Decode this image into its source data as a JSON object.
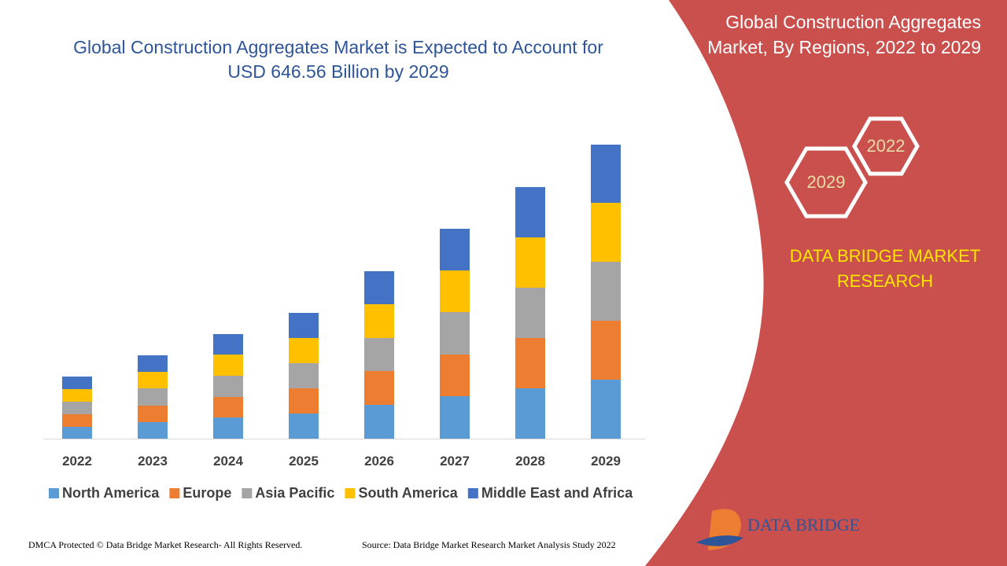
{
  "title": "Global Construction Aggregates Market is Expected to Account for USD 646.56 Billion by 2029",
  "side_panel": {
    "title": "Global Construction Aggregates Market, By Regions, 2022 to 2029",
    "hex_labels": [
      "2022",
      "2029"
    ],
    "brand": "DATA BRIDGE MARKET RESEARCH"
  },
  "logo": "DATA BRIDGE",
  "footer": {
    "left": "DMCA Protected © Data Bridge Market Research- All Rights Reserved.",
    "right": "Source: Data Bridge Market Research Market Analysis Study 2022"
  },
  "chart_data": {
    "type": "bar",
    "stacked": true,
    "categories": [
      "2022",
      "2023",
      "2024",
      "2025",
      "2026",
      "2027",
      "2028",
      "2029"
    ],
    "series": [
      {
        "name": "North America",
        "color": "#5b9bd5",
        "values": [
          15,
          21,
          27,
          32,
          43,
          54,
          64,
          75
        ]
      },
      {
        "name": "Europe",
        "color": "#ed7d31",
        "values": [
          16,
          21,
          26,
          32,
          43,
          53,
          64,
          75
        ]
      },
      {
        "name": "Asia Pacific",
        "color": "#a5a5a5",
        "values": [
          16,
          22,
          27,
          32,
          42,
          54,
          64,
          75
        ]
      },
      {
        "name": "South America",
        "color": "#ffc000",
        "values": [
          16,
          21,
          27,
          32,
          43,
          53,
          64,
          75
        ]
      },
      {
        "name": "Middle East and Africa",
        "color": "#4472c4",
        "values": [
          16,
          21,
          26,
          32,
          42,
          53,
          64,
          74
        ]
      }
    ]
  }
}
